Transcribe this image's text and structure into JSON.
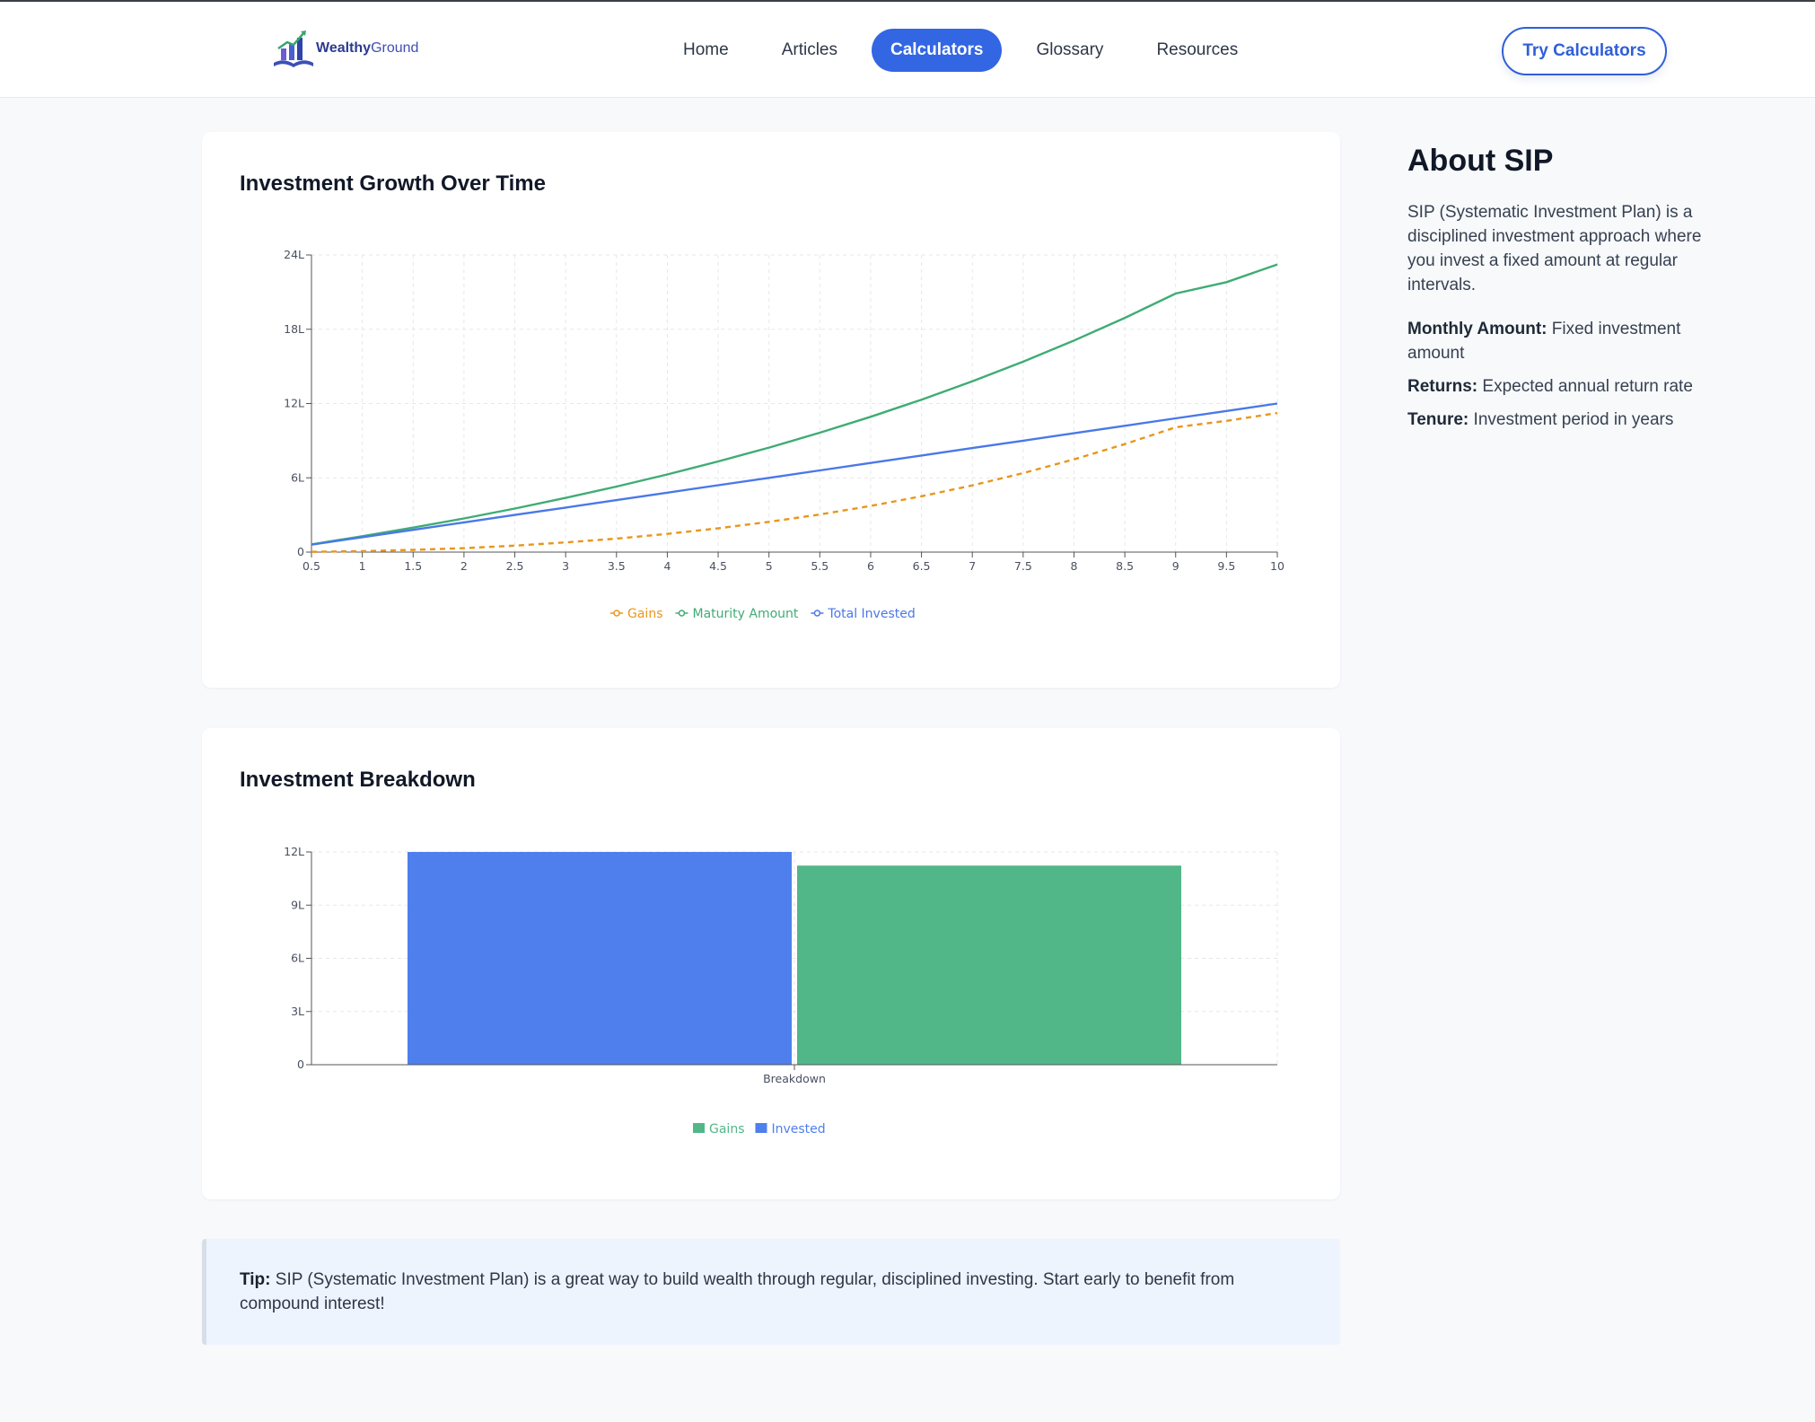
{
  "brand": {
    "name_part1": "Wealthy",
    "name_part2": "Ground"
  },
  "nav": {
    "items": [
      {
        "label": "Home",
        "active": false
      },
      {
        "label": "Articles",
        "active": false
      },
      {
        "label": "Calculators",
        "active": true
      },
      {
        "label": "Glossary",
        "active": false
      },
      {
        "label": "Resources",
        "active": false
      }
    ],
    "cta_label": "Try Calculators"
  },
  "growth_card": {
    "title": "Investment Growth Over Time"
  },
  "breakdown_card": {
    "title": "Investment Breakdown"
  },
  "tip": {
    "label": "Tip:",
    "text": "SIP (Systematic Investment Plan) is a great way to build wealth through regular, disciplined investing. Start early to benefit from compound interest!"
  },
  "about": {
    "title": "About SIP",
    "description": "SIP (Systematic Investment Plan) is a disciplined investment approach where you invest a fixed amount at regular intervals.",
    "items": [
      {
        "term": "Monthly Amount:",
        "definition": "Fixed investment amount"
      },
      {
        "term": "Returns:",
        "definition": "Expected annual return rate"
      },
      {
        "term": "Tenure:",
        "definition": "Investment period in years"
      }
    ]
  },
  "colors": {
    "gains_line": "#e8961c",
    "maturity": "#3fac74",
    "invested": "#4a78e8",
    "gains_bar": "#52b788",
    "invested_bar": "#4e7fed",
    "accent": "#3366e3"
  },
  "chart_data": [
    {
      "type": "line",
      "title": "Investment Growth Over Time",
      "x": [
        0.5,
        1,
        1.5,
        2,
        2.5,
        3,
        3.5,
        4,
        4.5,
        5,
        5.5,
        6,
        6.5,
        7,
        7.5,
        8,
        8.5,
        9,
        9.5,
        10
      ],
      "x_ticks": [
        "0.5",
        "1",
        "1.5",
        "2",
        "2.5",
        "3",
        "3.5",
        "4",
        "4.5",
        "5",
        "5.5",
        "6",
        "6.5",
        "7",
        "7.5",
        "8",
        "8.5",
        "9",
        "9.5",
        "10"
      ],
      "y_ticks": [
        "0",
        "6L",
        "12L",
        "18L",
        "24L"
      ],
      "ylim": [
        0,
        24
      ],
      "y_unit": "L",
      "grid": true,
      "legend_position": "bottom",
      "series": [
        {
          "name": "Gains",
          "style": "dashed",
          "values": [
            0.02,
            0.08,
            0.18,
            0.32,
            0.52,
            0.78,
            1.09,
            1.47,
            1.92,
            2.44,
            3.04,
            3.73,
            4.51,
            5.39,
            6.38,
            7.49,
            8.72,
            10.08,
            10.6,
            11.23
          ]
        },
        {
          "name": "Maturity Amount",
          "style": "solid",
          "values": [
            0.62,
            1.28,
            1.98,
            2.72,
            3.52,
            4.38,
            5.29,
            6.27,
            7.32,
            8.44,
            9.64,
            10.93,
            12.31,
            13.79,
            15.38,
            17.09,
            18.92,
            20.88,
            21.8,
            23.23
          ]
        },
        {
          "name": "Total Invested",
          "style": "solid",
          "values": [
            0.6,
            1.2,
            1.8,
            2.4,
            3.0,
            3.6,
            4.2,
            4.8,
            5.4,
            6.0,
            6.6,
            7.2,
            7.8,
            8.4,
            9.0,
            9.6,
            10.2,
            10.8,
            11.4,
            12.0
          ]
        }
      ]
    },
    {
      "type": "bar",
      "title": "Investment Breakdown",
      "categories": [
        "Breakdown"
      ],
      "y_ticks": [
        "0",
        "3L",
        "6L",
        "9L",
        "12L"
      ],
      "ylim": [
        0,
        12
      ],
      "y_unit": "L",
      "grid": true,
      "legend_position": "bottom",
      "series": [
        {
          "name": "Invested",
          "values": [
            12.0
          ]
        },
        {
          "name": "Gains",
          "values": [
            11.23
          ]
        }
      ],
      "legend_order": [
        "Gains",
        "Invested"
      ]
    }
  ]
}
